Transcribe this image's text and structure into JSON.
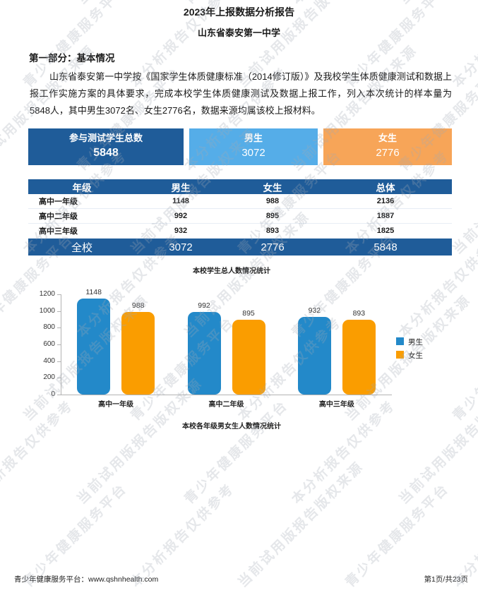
{
  "page": {
    "title": "2023年上报数据分析报告",
    "subtitle": "山东省泰安第一中学",
    "section_heading": "第一部分：基本情况",
    "intro_paragraph": "山东省泰安第一中学按《国家学生体质健康标准（2014修订版）》及我校学生体质健康测试和数据上报工作实施方案的具体要求，完成本校学生体质健康测试及数据上报工作，列入本次统计的样本量为5848人，其中男生3072名、女生2776名，数据来源均属该校上报材料。"
  },
  "summary_cards": [
    {
      "label": "参与测试学生总数",
      "value": "5848",
      "color": "#1f5c99"
    },
    {
      "label": "男生",
      "value": "3072",
      "color": "#55ade8"
    },
    {
      "label": "女生",
      "value": "2776",
      "color": "#f7a558"
    }
  ],
  "grade_table": {
    "headers": [
      "年级",
      "男生",
      "女生",
      "总体"
    ],
    "rows": [
      [
        "高中一年级",
        "1148",
        "988",
        "2136"
      ],
      [
        "高中二年级",
        "992",
        "895",
        "1887"
      ],
      [
        "高中三年级",
        "932",
        "893",
        "1825"
      ]
    ],
    "footer": [
      "全校",
      "3072",
      "2776",
      "5848"
    ]
  },
  "captions": {
    "above_chart": "本校学生总人数情况统计",
    "below_chart": "本校各年级男女生人数情况统计"
  },
  "chart_data": {
    "type": "bar",
    "title": "本校各年级男女生人数情况统计",
    "categories": [
      "高中一年级",
      "高中二年级",
      "高中三年级"
    ],
    "series": [
      {
        "name": "男生",
        "values": [
          1148,
          992,
          932
        ],
        "color": "#2389c9"
      },
      {
        "name": "女生",
        "values": [
          988,
          895,
          893
        ],
        "color": "#fa9d00"
      }
    ],
    "ylim": [
      0,
      1200
    ],
    "ytick_step": 200,
    "grid": false,
    "legend_position": "right"
  },
  "watermark": {
    "phrases": [
      "本分析报告仅供参考",
      "青少年健康服务平台",
      "当前试用版报告版权来源"
    ]
  },
  "page_footer": {
    "left": "青少年健康服务平台：www.qshnhealth.com",
    "right": "第1页/共23页"
  },
  "colors": {
    "primary_blue": "#1f5c99",
    "light_blue": "#55ade8",
    "orange": "#f7a558",
    "bar_blue": "#2389c9",
    "bar_orange": "#fa9d00"
  }
}
